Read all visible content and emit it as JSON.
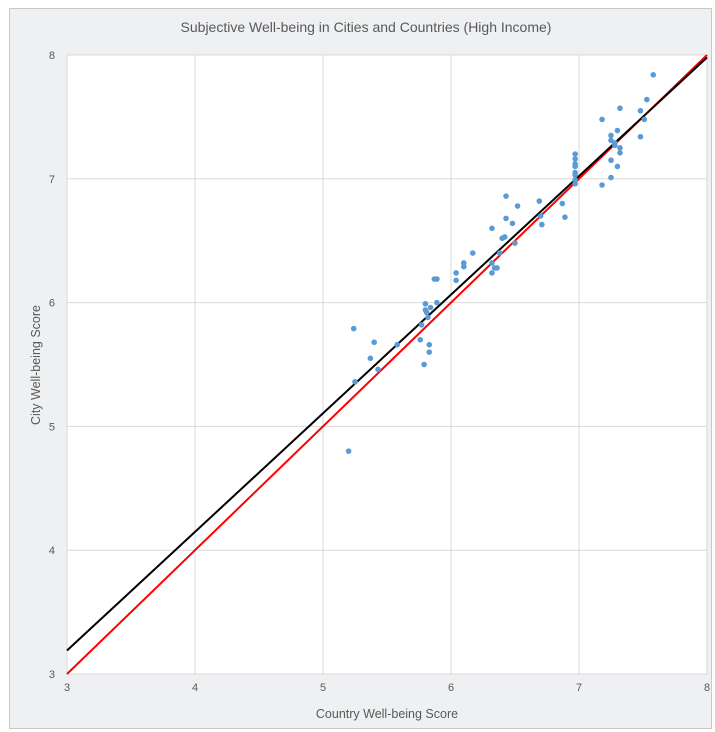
{
  "chart_data": {
    "type": "scatter",
    "title": "Subjective Well-being in Cities and Countries (High Income)",
    "xlabel": "Country Well-being Score",
    "ylabel": "City Well-being Score",
    "xlim": [
      3,
      8
    ],
    "ylim": [
      3,
      8
    ],
    "x_ticks": [
      "3",
      "4",
      "5",
      "6",
      "7",
      "8"
    ],
    "y_ticks": [
      "3",
      "4",
      "5",
      "6",
      "7",
      "8"
    ],
    "grid": true,
    "colors": {
      "points": "#5b9bd5",
      "trend_line": "#000000",
      "equality_line": "#ff0000"
    },
    "series": [
      {
        "values": [
          [
            5.2,
            4.8
          ],
          [
            5.24,
            5.79
          ],
          [
            5.25,
            5.36
          ],
          [
            5.37,
            5.55
          ],
          [
            5.4,
            5.68
          ],
          [
            5.43,
            5.46
          ],
          [
            5.58,
            5.66
          ],
          [
            5.76,
            5.7
          ],
          [
            5.77,
            5.82
          ],
          [
            5.79,
            5.5
          ],
          [
            5.8,
            5.99
          ],
          [
            5.8,
            5.94
          ],
          [
            5.81,
            5.92
          ],
          [
            5.82,
            5.88
          ],
          [
            5.83,
            5.66
          ],
          [
            5.83,
            5.6
          ],
          [
            5.84,
            5.96
          ],
          [
            5.87,
            6.19
          ],
          [
            5.89,
            6.19
          ],
          [
            5.89,
            6.0
          ],
          [
            6.04,
            6.24
          ],
          [
            6.04,
            6.18
          ],
          [
            6.1,
            6.32
          ],
          [
            6.1,
            6.29
          ],
          [
            6.17,
            6.4
          ],
          [
            6.32,
            6.6
          ],
          [
            6.32,
            6.32
          ],
          [
            6.32,
            6.24
          ],
          [
            6.34,
            6.28
          ],
          [
            6.36,
            6.28
          ],
          [
            6.38,
            6.4
          ],
          [
            6.4,
            6.52
          ],
          [
            6.42,
            6.53
          ],
          [
            6.43,
            6.86
          ],
          [
            6.43,
            6.68
          ],
          [
            6.48,
            6.64
          ],
          [
            6.5,
            6.48
          ],
          [
            6.52,
            6.78
          ],
          [
            6.69,
            6.82
          ],
          [
            6.7,
            6.7
          ],
          [
            6.71,
            6.63
          ],
          [
            6.87,
            6.8
          ],
          [
            6.89,
            6.69
          ],
          [
            6.97,
            7.2
          ],
          [
            6.97,
            7.16
          ],
          [
            6.97,
            7.12
          ],
          [
            6.97,
            7.1
          ],
          [
            6.97,
            7.05
          ],
          [
            6.97,
            7.03
          ],
          [
            6.97,
            6.99
          ],
          [
            6.97,
            6.96
          ],
          [
            7.18,
            7.48
          ],
          [
            7.18,
            6.95
          ],
          [
            7.25,
            7.35
          ],
          [
            7.25,
            7.31
          ],
          [
            7.25,
            7.15
          ],
          [
            7.25,
            7.01
          ],
          [
            7.28,
            7.29
          ],
          [
            7.28,
            7.27
          ],
          [
            7.3,
            7.39
          ],
          [
            7.3,
            7.1
          ],
          [
            7.32,
            7.57
          ],
          [
            7.32,
            7.25
          ],
          [
            7.32,
            7.21
          ],
          [
            7.48,
            7.55
          ],
          [
            7.48,
            7.34
          ],
          [
            7.51,
            7.48
          ],
          [
            7.53,
            7.64
          ],
          [
            7.58,
            7.84
          ]
        ]
      }
    ],
    "lines": [
      {
        "role": "trend",
        "x": [
          3,
          8
        ],
        "y": [
          3.19,
          7.98
        ]
      },
      {
        "role": "equality",
        "x": [
          3,
          8
        ],
        "y": [
          3,
          8
        ]
      }
    ]
  }
}
